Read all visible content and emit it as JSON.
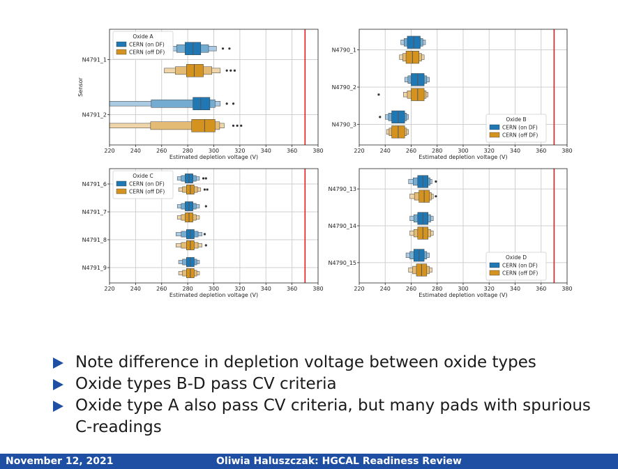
{
  "slide": {
    "bullets": [
      "Note difference in depletion voltage between oxide types",
      "Oxide types B-D pass CV criteria",
      "Oxide type A also pass CV criteria, but many pads with spurious C-readings"
    ],
    "footer_date": "November 12, 2021",
    "footer_title": "Oliwia Haluszczak: HGCAL Readiness Review"
  },
  "colors": {
    "on_df": "#1f77b4",
    "off_df": "#d4921e",
    "limit_line": "#e41a1c",
    "footer": "#1f4fa3"
  },
  "chart_data": [
    {
      "type": "boxen",
      "xlabel": "Estimated depletion voltage (V)",
      "ylabel": "Sensor",
      "xlim": [
        220,
        380
      ],
      "xticks": [
        220,
        240,
        260,
        280,
        300,
        320,
        340,
        360,
        380
      ],
      "limit_line": 370,
      "grid": true,
      "legend": {
        "title": "Oxide A",
        "entries": [
          "CERN (on DF)",
          "CERN (off DF)"
        ],
        "placement": "top-left"
      },
      "categories": [
        "N4791_1",
        "N4791_2"
      ],
      "series": [
        {
          "name": "CERN (on DF)",
          "median": [
            284,
            290
          ],
          "boxes": [
            [
              278,
              290
            ],
            [
              284,
              297
            ]
          ],
          "whiskers": [
            [
              265,
              302
            ],
            [
              220,
              305
            ]
          ],
          "outliers": [
            [
              307,
              312
            ],
            [
              310,
              315
            ]
          ]
        },
        {
          "name": "CERN (off DF)",
          "median": [
            285,
            293
          ],
          "boxes": [
            [
              279,
              292
            ],
            [
              283,
              301
            ]
          ],
          "whiskers": [
            [
              262,
              305
            ],
            [
              220,
              308
            ]
          ],
          "outliers": [
            [
              310,
              313,
              316
            ],
            [
              315,
              318,
              321
            ]
          ]
        }
      ]
    },
    {
      "type": "boxen",
      "xlabel": "Estimated depletion voltage (V)",
      "ylabel": "",
      "xlim": [
        220,
        380
      ],
      "xticks": [
        220,
        240,
        260,
        280,
        300,
        320,
        340,
        360,
        380
      ],
      "limit_line": 370,
      "grid": true,
      "legend": {
        "title": "Oxide B",
        "entries": [
          "CERN (on DF)",
          "CERN (off DF)"
        ],
        "placement": "bottom-right"
      },
      "categories": [
        "N4790_1",
        "N4790_2",
        "N4790_3"
      ],
      "series": [
        {
          "name": "CERN (on DF)",
          "median": [
            262,
            265,
            250
          ],
          "boxes": [
            [
              257,
              267
            ],
            [
              260,
              270
            ],
            [
              245,
              255
            ]
          ],
          "whiskers": [
            [
              252,
              271
            ],
            [
              255,
              274
            ],
            [
              240,
              258
            ]
          ],
          "outliers": [
            [],
            [],
            [
              236
            ]
          ]
        },
        {
          "name": "CERN (off DF)",
          "median": [
            261,
            265,
            250
          ],
          "boxes": [
            [
              256,
              266
            ],
            [
              260,
              270
            ],
            [
              245,
              255
            ]
          ],
          "whiskers": [
            [
              251,
              270
            ],
            [
              254,
              273
            ],
            [
              241,
              258
            ]
          ],
          "outliers": [
            [],
            [
              235
            ],
            []
          ]
        }
      ]
    },
    {
      "type": "boxen",
      "xlabel": "Estimated depletion voltage (V)",
      "ylabel": "",
      "xlim": [
        220,
        380
      ],
      "xticks": [
        220,
        240,
        260,
        280,
        300,
        320,
        340,
        360,
        380
      ],
      "limit_line": 370,
      "grid": true,
      "legend": {
        "title": "Oxide C",
        "entries": [
          "CERN (on DF)",
          "CERN (off DF)"
        ],
        "placement": "top-left"
      },
      "categories": [
        "N4791_6",
        "N4791_7",
        "N4791_8",
        "N4791_9"
      ],
      "series": [
        {
          "name": "CERN (on DF)",
          "median": [
            281,
            281,
            282,
            282
          ],
          "boxes": [
            [
              278,
              284
            ],
            [
              278,
              284
            ],
            [
              279,
              285
            ],
            [
              279,
              285
            ]
          ],
          "whiskers": [
            [
              272,
              289
            ],
            [
              272,
              289
            ],
            [
              271,
              291
            ],
            [
              273,
              289
            ]
          ],
          "outliers": [
            [
              292,
              294
            ],
            [
              294
            ],
            [
              293
            ],
            []
          ]
        },
        {
          "name": "CERN (off DF)",
          "median": [
            282,
            281,
            282,
            282
          ],
          "boxes": [
            [
              279,
              285
            ],
            [
              278,
              284
            ],
            [
              279,
              285
            ],
            [
              279,
              285
            ]
          ],
          "whiskers": [
            [
              273,
              290
            ],
            [
              272,
              289
            ],
            [
              271,
              291
            ],
            [
              273,
              289
            ]
          ],
          "outliers": [
            [
              293,
              295
            ],
            [],
            [
              294
            ],
            []
          ]
        }
      ]
    },
    {
      "type": "boxen",
      "xlabel": "Estimated depletion voltage (V)",
      "ylabel": "",
      "xlim": [
        220,
        380
      ],
      "xticks": [
        220,
        240,
        260,
        280,
        300,
        320,
        340,
        360,
        380
      ],
      "limit_line": 370,
      "grid": true,
      "legend": {
        "title": "Oxide D",
        "entries": [
          "CERN (on DF)",
          "CERN (off DF)"
        ],
        "placement": "bottom-right"
      },
      "categories": [
        "N4790_13",
        "N4790_14",
        "N4790_15"
      ],
      "series": [
        {
          "name": "CERN (on DF)",
          "median": [
            269,
            269,
            266
          ],
          "boxes": [
            [
              265,
              273
            ],
            [
              265,
              273
            ],
            [
              262,
              270
            ]
          ],
          "whiskers": [
            [
              258,
              276
            ],
            [
              259,
              277
            ],
            [
              256,
              274
            ]
          ],
          "outliers": [
            [
              279
            ],
            [],
            []
          ]
        },
        {
          "name": "CERN (off DF)",
          "median": [
            270,
            269,
            268
          ],
          "boxes": [
            [
              266,
              274
            ],
            [
              265,
              273
            ],
            [
              264,
              272
            ]
          ],
          "whiskers": [
            [
              259,
              277
            ],
            [
              259,
              277
            ],
            [
              258,
              276
            ]
          ],
          "outliers": [
            [
              279
            ],
            [],
            []
          ]
        }
      ]
    }
  ]
}
